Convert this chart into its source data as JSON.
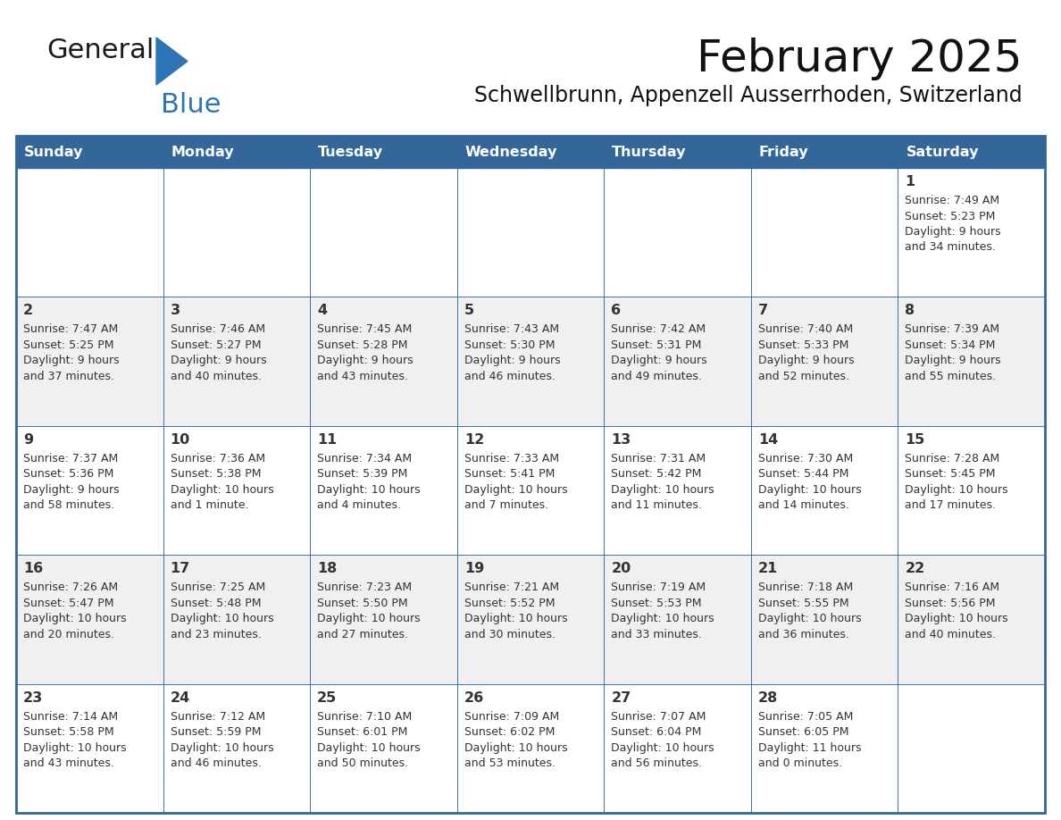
{
  "title": "February 2025",
  "subtitle": "Schwellbrunn, Appenzell Ausserrhoden, Switzerland",
  "days_of_week": [
    "Sunday",
    "Monday",
    "Tuesday",
    "Wednesday",
    "Thursday",
    "Friday",
    "Saturday"
  ],
  "header_bg": "#336699",
  "header_text": "#FFFFFF",
  "cell_bg_odd": "#FFFFFF",
  "cell_bg_even": "#F0F0F0",
  "border_color": "#336699",
  "text_color": "#333333",
  "logo_general_color": "#1a1a1a",
  "logo_blue_color": "#2E75B6",
  "logo_triangle_color": "#2E75B6",
  "weeks": [
    [
      {
        "day": null,
        "info": null
      },
      {
        "day": null,
        "info": null
      },
      {
        "day": null,
        "info": null
      },
      {
        "day": null,
        "info": null
      },
      {
        "day": null,
        "info": null
      },
      {
        "day": null,
        "info": null
      },
      {
        "day": 1,
        "info": "Sunrise: 7:49 AM\nSunset: 5:23 PM\nDaylight: 9 hours\nand 34 minutes."
      }
    ],
    [
      {
        "day": 2,
        "info": "Sunrise: 7:47 AM\nSunset: 5:25 PM\nDaylight: 9 hours\nand 37 minutes."
      },
      {
        "day": 3,
        "info": "Sunrise: 7:46 AM\nSunset: 5:27 PM\nDaylight: 9 hours\nand 40 minutes."
      },
      {
        "day": 4,
        "info": "Sunrise: 7:45 AM\nSunset: 5:28 PM\nDaylight: 9 hours\nand 43 minutes."
      },
      {
        "day": 5,
        "info": "Sunrise: 7:43 AM\nSunset: 5:30 PM\nDaylight: 9 hours\nand 46 minutes."
      },
      {
        "day": 6,
        "info": "Sunrise: 7:42 AM\nSunset: 5:31 PM\nDaylight: 9 hours\nand 49 minutes."
      },
      {
        "day": 7,
        "info": "Sunrise: 7:40 AM\nSunset: 5:33 PM\nDaylight: 9 hours\nand 52 minutes."
      },
      {
        "day": 8,
        "info": "Sunrise: 7:39 AM\nSunset: 5:34 PM\nDaylight: 9 hours\nand 55 minutes."
      }
    ],
    [
      {
        "day": 9,
        "info": "Sunrise: 7:37 AM\nSunset: 5:36 PM\nDaylight: 9 hours\nand 58 minutes."
      },
      {
        "day": 10,
        "info": "Sunrise: 7:36 AM\nSunset: 5:38 PM\nDaylight: 10 hours\nand 1 minute."
      },
      {
        "day": 11,
        "info": "Sunrise: 7:34 AM\nSunset: 5:39 PM\nDaylight: 10 hours\nand 4 minutes."
      },
      {
        "day": 12,
        "info": "Sunrise: 7:33 AM\nSunset: 5:41 PM\nDaylight: 10 hours\nand 7 minutes."
      },
      {
        "day": 13,
        "info": "Sunrise: 7:31 AM\nSunset: 5:42 PM\nDaylight: 10 hours\nand 11 minutes."
      },
      {
        "day": 14,
        "info": "Sunrise: 7:30 AM\nSunset: 5:44 PM\nDaylight: 10 hours\nand 14 minutes."
      },
      {
        "day": 15,
        "info": "Sunrise: 7:28 AM\nSunset: 5:45 PM\nDaylight: 10 hours\nand 17 minutes."
      }
    ],
    [
      {
        "day": 16,
        "info": "Sunrise: 7:26 AM\nSunset: 5:47 PM\nDaylight: 10 hours\nand 20 minutes."
      },
      {
        "day": 17,
        "info": "Sunrise: 7:25 AM\nSunset: 5:48 PM\nDaylight: 10 hours\nand 23 minutes."
      },
      {
        "day": 18,
        "info": "Sunrise: 7:23 AM\nSunset: 5:50 PM\nDaylight: 10 hours\nand 27 minutes."
      },
      {
        "day": 19,
        "info": "Sunrise: 7:21 AM\nSunset: 5:52 PM\nDaylight: 10 hours\nand 30 minutes."
      },
      {
        "day": 20,
        "info": "Sunrise: 7:19 AM\nSunset: 5:53 PM\nDaylight: 10 hours\nand 33 minutes."
      },
      {
        "day": 21,
        "info": "Sunrise: 7:18 AM\nSunset: 5:55 PM\nDaylight: 10 hours\nand 36 minutes."
      },
      {
        "day": 22,
        "info": "Sunrise: 7:16 AM\nSunset: 5:56 PM\nDaylight: 10 hours\nand 40 minutes."
      }
    ],
    [
      {
        "day": 23,
        "info": "Sunrise: 7:14 AM\nSunset: 5:58 PM\nDaylight: 10 hours\nand 43 minutes."
      },
      {
        "day": 24,
        "info": "Sunrise: 7:12 AM\nSunset: 5:59 PM\nDaylight: 10 hours\nand 46 minutes."
      },
      {
        "day": 25,
        "info": "Sunrise: 7:10 AM\nSunset: 6:01 PM\nDaylight: 10 hours\nand 50 minutes."
      },
      {
        "day": 26,
        "info": "Sunrise: 7:09 AM\nSunset: 6:02 PM\nDaylight: 10 hours\nand 53 minutes."
      },
      {
        "day": 27,
        "info": "Sunrise: 7:07 AM\nSunset: 6:04 PM\nDaylight: 10 hours\nand 56 minutes."
      },
      {
        "day": 28,
        "info": "Sunrise: 7:05 AM\nSunset: 6:05 PM\nDaylight: 11 hours\nand 0 minutes."
      },
      {
        "day": null,
        "info": null
      }
    ]
  ]
}
